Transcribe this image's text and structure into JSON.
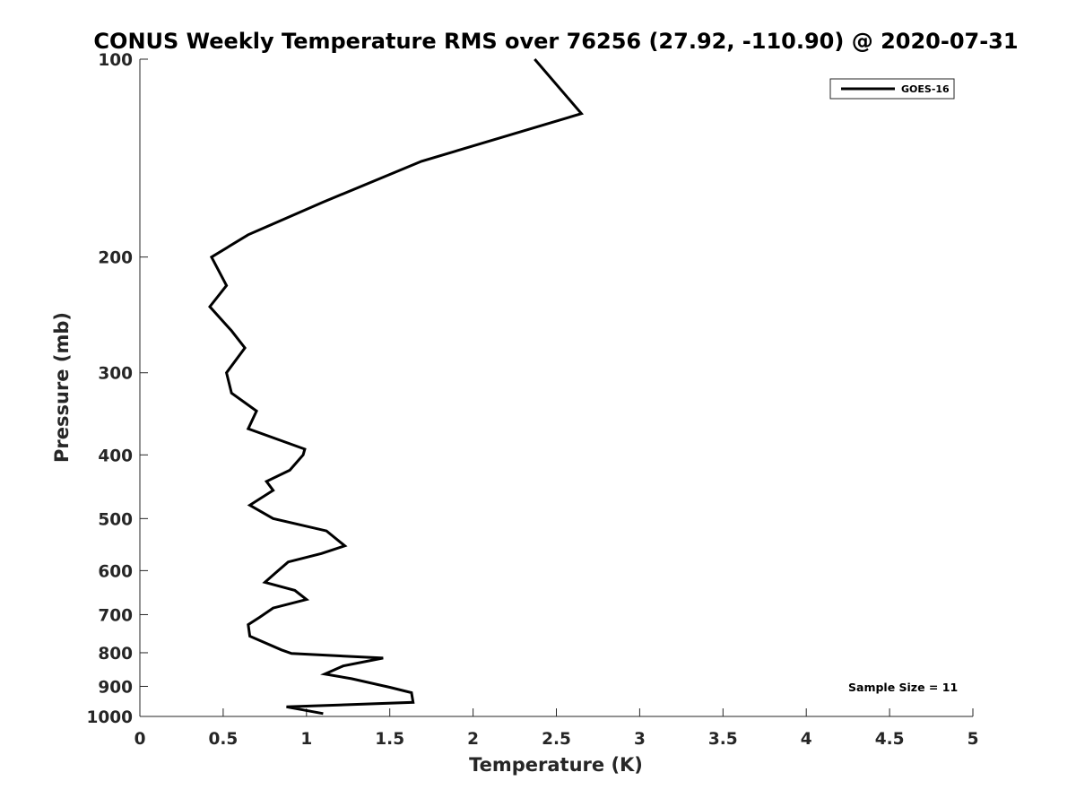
{
  "chart_data": {
    "type": "line",
    "title": "CONUS Weekly Temperature RMS over 76256 (27.92, -110.90) @ 2020-07-31",
    "xlabel": "Temperature (K)",
    "ylabel": "Pressure (mb)",
    "xlim": [
      0,
      5
    ],
    "ylim": [
      100,
      1000
    ],
    "y_scale": "log",
    "y_reversed": true,
    "x_ticks": [
      "0",
      "0.5",
      "1",
      "1.5",
      "2",
      "2.5",
      "3",
      "3.5",
      "4",
      "4.5",
      "5"
    ],
    "y_ticks": [
      "100",
      "200",
      "300",
      "400",
      "500",
      "600",
      "700",
      "800",
      "900",
      "1000"
    ],
    "grid": false,
    "legend_position": "top-right",
    "annotation": "Sample Size = 11",
    "series": [
      {
        "name": "GOES-16",
        "color": "#000000",
        "points": [
          [
            2.37,
            100
          ],
          [
            2.65,
            121
          ],
          [
            1.69,
            143
          ],
          [
            1.1,
            165
          ],
          [
            0.65,
            185
          ],
          [
            0.43,
            200
          ],
          [
            0.52,
            221
          ],
          [
            0.42,
            238
          ],
          [
            0.55,
            259
          ],
          [
            0.63,
            275
          ],
          [
            0.52,
            300
          ],
          [
            0.55,
            322
          ],
          [
            0.7,
            343
          ],
          [
            0.65,
            365
          ],
          [
            0.99,
            392
          ],
          [
            0.98,
            400
          ],
          [
            0.9,
            422
          ],
          [
            0.76,
            439
          ],
          [
            0.8,
            453
          ],
          [
            0.66,
            477
          ],
          [
            0.8,
            500
          ],
          [
            1.12,
            522
          ],
          [
            1.23,
            550
          ],
          [
            1.09,
            565
          ],
          [
            0.89,
            582
          ],
          [
            0.81,
            606
          ],
          [
            0.75,
            625
          ],
          [
            0.93,
            643
          ],
          [
            1.0,
            664
          ],
          [
            0.8,
            684
          ],
          [
            0.72,
            706
          ],
          [
            0.65,
            725
          ],
          [
            0.66,
            755
          ],
          [
            0.85,
            792
          ],
          [
            0.91,
            802
          ],
          [
            1.46,
            815
          ],
          [
            1.22,
            838
          ],
          [
            1.11,
            862
          ],
          [
            1.27,
            876
          ],
          [
            1.5,
            903
          ],
          [
            1.63,
            920
          ],
          [
            1.64,
            952
          ],
          [
            0.88,
            967
          ],
          [
            1.1,
            990
          ]
        ]
      }
    ]
  }
}
